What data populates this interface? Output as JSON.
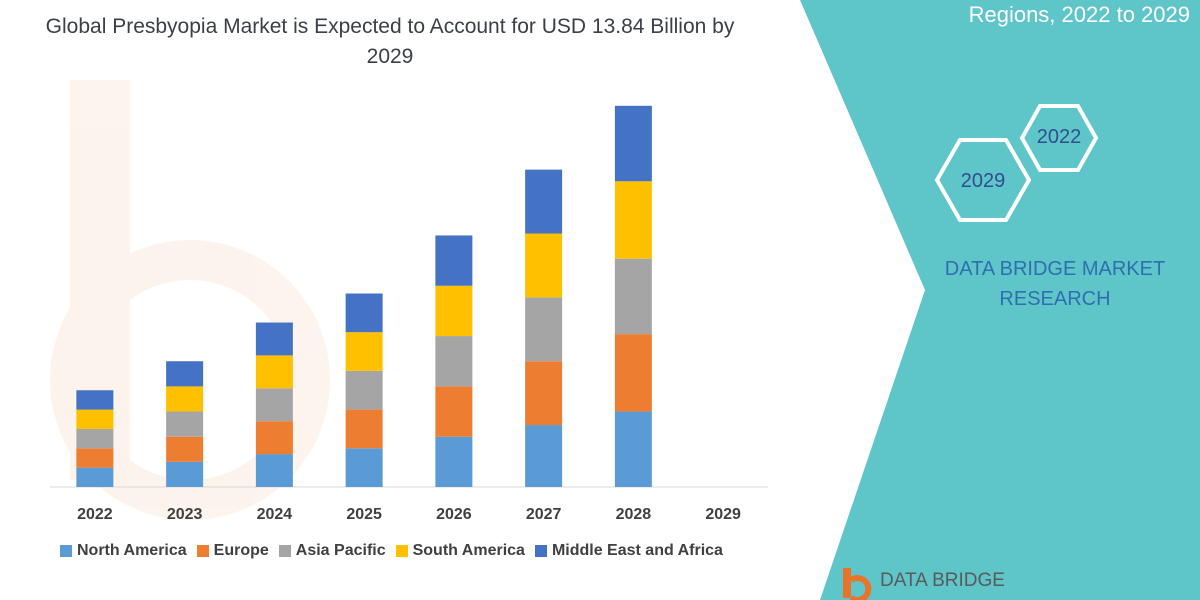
{
  "header": {
    "title": "Global Presbyopia Market is Expected to Account for USD 13.84 Billion by 2029"
  },
  "side_panel": {
    "top_text": "Regions, 2022 to 2029",
    "hex_year_1": "2022",
    "hex_year_2": "2029",
    "brand": "DATA BRIDGE MARKET RESEARCH",
    "logo_text": "DATA BRIDGE",
    "panel_color": "#5ec5c8"
  },
  "chart_data": {
    "type": "bar",
    "stacked": true,
    "categories": [
      "2022",
      "2023",
      "2024",
      "2025",
      "2026",
      "2027",
      "2028",
      "2029"
    ],
    "series": [
      {
        "name": "North America",
        "color": "#5b9bd5",
        "values": [
          1.0,
          1.3,
          1.7,
          2.0,
          2.6,
          3.2,
          3.9,
          null
        ]
      },
      {
        "name": "Europe",
        "color": "#ed7d31",
        "values": [
          1.0,
          1.3,
          1.7,
          2.0,
          2.6,
          3.3,
          4.0,
          null
        ]
      },
      {
        "name": "Asia Pacific",
        "color": "#a5a5a5",
        "values": [
          1.0,
          1.3,
          1.7,
          2.0,
          2.6,
          3.3,
          3.9,
          null
        ]
      },
      {
        "name": "South America",
        "color": "#ffc000",
        "values": [
          1.0,
          1.3,
          1.7,
          2.0,
          2.6,
          3.3,
          4.0,
          null
        ]
      },
      {
        "name": "Middle East and Africa",
        "color": "#4472c4",
        "values": [
          1.0,
          1.3,
          1.7,
          2.0,
          2.6,
          3.3,
          3.9,
          null
        ]
      }
    ],
    "ylim": [
      0,
      20
    ],
    "grid": false,
    "legend": "bottom"
  }
}
